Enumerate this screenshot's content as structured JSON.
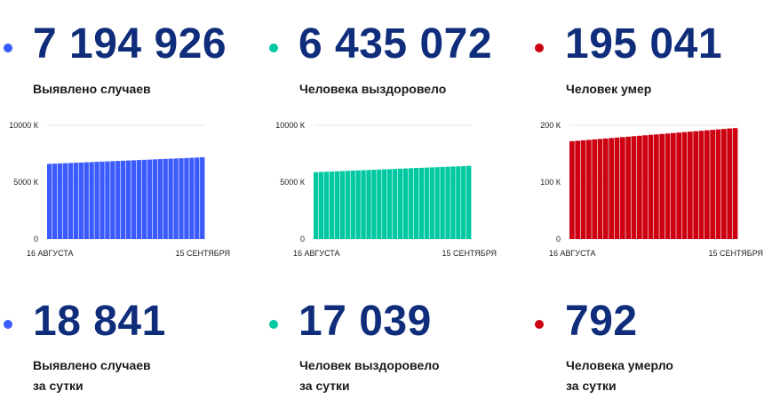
{
  "colors": {
    "blue": "#3b5bfd",
    "teal": "#00c8a0",
    "red": "#cc0010",
    "number": "#0f2d7a"
  },
  "totals": [
    {
      "value": "7 194 926",
      "label": "Выявлено случаев"
    },
    {
      "value": "6 435 072",
      "label": "Человека выздоровело"
    },
    {
      "value": "195 041",
      "label": "Человек умер"
    }
  ],
  "daily": [
    {
      "value": "18 841",
      "label_line1": "Выявлено случаев",
      "label_line2": "за сутки"
    },
    {
      "value": "17 039",
      "label_line1": "Человек выздоровело",
      "label_line2": "за сутки"
    },
    {
      "value": "792",
      "label_line1": "Человека умерло",
      "label_line2": "за сутки"
    }
  ],
  "chart_data": [
    {
      "type": "bar",
      "x_start_label": "16 АВГУСТА",
      "x_end_label": "15 СЕНТЯБРЯ",
      "ytick_labels": [
        "0",
        "5000 К",
        "10000 К"
      ],
      "ylim": [
        0,
        10000
      ],
      "unit": "thousands",
      "color": "#3b5bfd",
      "values": [
        6610,
        6630,
        6649,
        6669,
        6689,
        6709,
        6728,
        6748,
        6768,
        6788,
        6808,
        6827,
        6847,
        6867,
        6887,
        6906,
        6926,
        6946,
        6966,
        6985,
        7005,
        7025,
        7045,
        7064,
        7084,
        7104,
        7124,
        7143,
        7163,
        7195
      ]
    },
    {
      "type": "bar",
      "x_start_label": "16 АВГУСТА",
      "x_end_label": "15 СЕНТЯБРЯ",
      "ytick_labels": [
        "0",
        "5000 К",
        "10000 К"
      ],
      "ylim": [
        0,
        10000
      ],
      "unit": "thousands",
      "color": "#00c8a0",
      "values": [
        5880,
        5900,
        5919,
        5938,
        5957,
        5976,
        5995,
        6014,
        6033,
        6052,
        6071,
        6090,
        6109,
        6128,
        6147,
        6166,
        6185,
        6204,
        6223,
        6242,
        6261,
        6280,
        6299,
        6318,
        6337,
        6356,
        6375,
        6394,
        6413,
        6435
      ]
    },
    {
      "type": "bar",
      "x_start_label": "16 АВГУСТА",
      "x_end_label": "15 СЕНТЯБРЯ",
      "ytick_labels": [
        "0",
        "100 К",
        "200 К"
      ],
      "ylim": [
        0,
        200
      ],
      "unit": "thousands",
      "color": "#cc0010",
      "values": [
        172.0,
        172.8,
        173.6,
        174.4,
        175.2,
        176.0,
        176.8,
        177.6,
        178.4,
        179.2,
        180.0,
        180.8,
        181.6,
        182.4,
        183.2,
        184.0,
        184.8,
        185.6,
        186.4,
        187.2,
        188.0,
        188.8,
        189.6,
        190.4,
        191.2,
        192.0,
        192.8,
        193.6,
        194.4,
        195.0
      ]
    }
  ]
}
